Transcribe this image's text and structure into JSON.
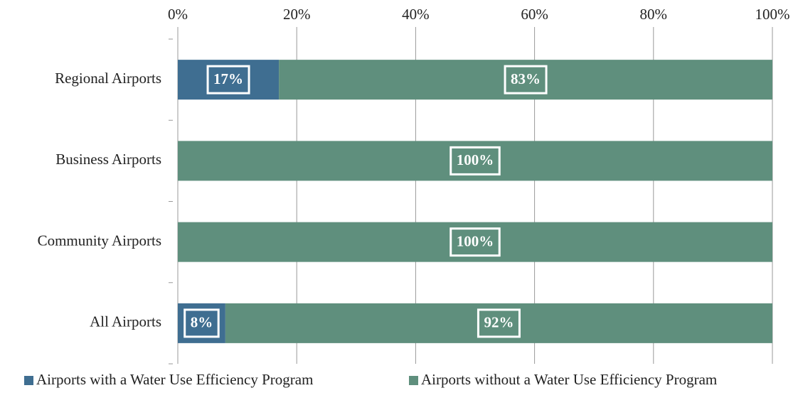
{
  "chart_data": {
    "type": "stacked_bar_horizontal",
    "categories": [
      "Regional Airports",
      "Business Airports",
      "Community Airports",
      "All Airports"
    ],
    "series": [
      {
        "name": "Airports with a Water Use Efficiency Program",
        "color": "#3f6e91",
        "values": [
          17,
          0,
          0,
          8
        ],
        "value_labels": [
          "17%",
          null,
          null,
          "8%"
        ]
      },
      {
        "name": "Airports without a Water Use Efficiency Program",
        "color": "#5f8f7d",
        "values": [
          83,
          100,
          100,
          92
        ],
        "value_labels": [
          "83%",
          "100%",
          "100%",
          "92%"
        ]
      }
    ],
    "xlim": [
      0,
      100
    ],
    "xticks": [
      {
        "value": 0,
        "label": "0%"
      },
      {
        "value": 20,
        "label": "20%"
      },
      {
        "value": 40,
        "label": "40%"
      },
      {
        "value": 60,
        "label": "60%"
      },
      {
        "value": 80,
        "label": "80%"
      },
      {
        "value": 100,
        "label": "100%"
      }
    ],
    "grid": true,
    "legend": "bottom"
  }
}
